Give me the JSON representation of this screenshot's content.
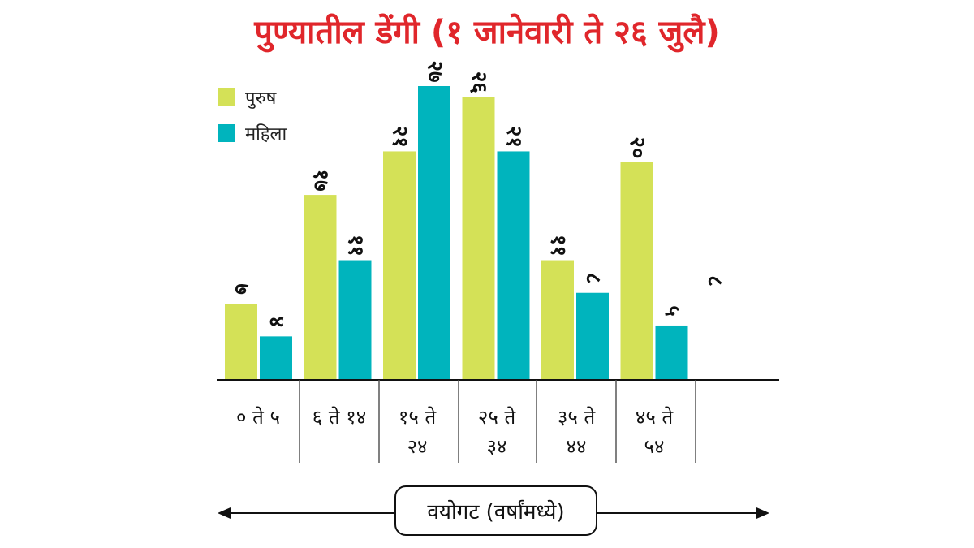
{
  "title": "पुण्यातील डेंगी (१ जानेवारी ते २६ जुलै)",
  "legend": {
    "male_label": "पुरुष",
    "female_label": "महिला"
  },
  "colors": {
    "title": "#e0262b",
    "male": "#d4e157",
    "female": "#00b4bd",
    "axis": "#111111"
  },
  "axis_caption": "वयोगट (वर्षांमध्ये)",
  "chart_data": {
    "type": "bar",
    "title": "पुण्यातील डेंगी (१ जानेवारी ते २६ जुलै)",
    "xlabel": "वयोगट (वर्षांमध्ये)",
    "ylabel": "",
    "categories": [
      "० ते ५",
      "६ ते १४",
      "१५ ते २४",
      "२५ ते ३४",
      "३५ ते ४४",
      "४५ ते ५४"
    ],
    "category_lines": [
      [
        "० ते ५"
      ],
      [
        "६ ते १४"
      ],
      [
        "१५ ते",
        "२४"
      ],
      [
        "२५ ते",
        "३४"
      ],
      [
        "३५ ते",
        "४४"
      ],
      [
        "४५ ते",
        "५४"
      ]
    ],
    "series": [
      {
        "name": "पुरुष",
        "values": [
          7,
          17,
          21,
          26,
          11,
          20
        ],
        "labels": [
          "७",
          "१७",
          "२१",
          "२६",
          "११",
          "२०"
        ]
      },
      {
        "name": "महिला",
        "values": [
          4,
          11,
          27,
          21,
          8,
          5
        ],
        "labels": [
          "४",
          "११",
          "२७",
          "२१",
          "८",
          "५"
        ]
      }
    ],
    "extra_label": "८",
    "ylim": [
      0,
      27
    ],
    "legend": "top-left"
  }
}
